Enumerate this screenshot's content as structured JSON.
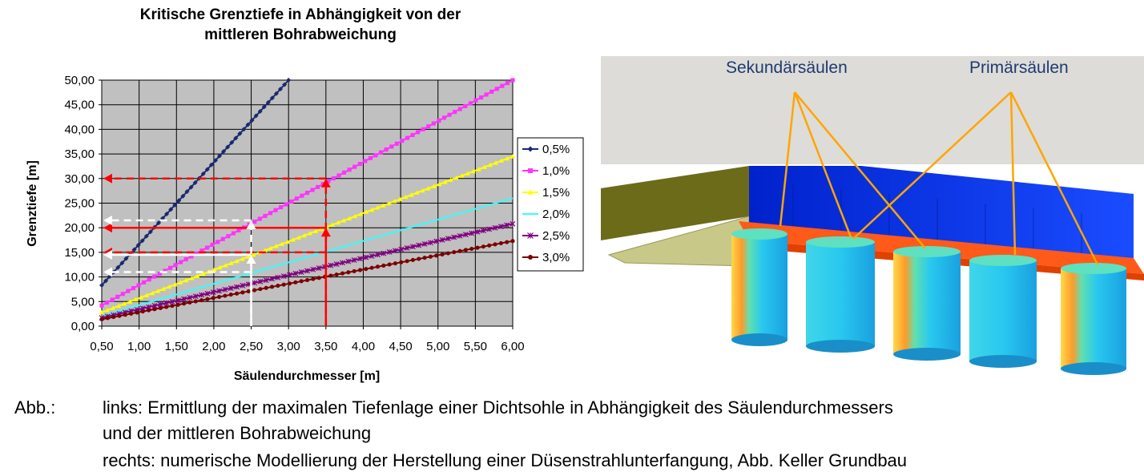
{
  "chart_data": {
    "type": "line",
    "title_line1": "Kritische Grenztiefe in Abhängigkeit von der",
    "title_line2": "mittleren Bohrabweichung",
    "xlabel": "Säulendurchmesser [m]",
    "ylabel": "Grenztiefe [m]",
    "xlim": [
      0.5,
      6.0
    ],
    "ylim": [
      0,
      50
    ],
    "x_ticks": [
      "0,50",
      "1,00",
      "1,50",
      "2,00",
      "2,50",
      "3,00",
      "3,50",
      "4,00",
      "4,50",
      "5,00",
      "5,50",
      "6,00"
    ],
    "y_ticks": [
      "0,00",
      "5,00",
      "10,00",
      "15,00",
      "20,00",
      "25,00",
      "30,00",
      "35,00",
      "40,00",
      "45,00",
      "50,00"
    ],
    "grid": true,
    "legend_position": "right",
    "series": [
      {
        "name": "0,5%",
        "color": "#1a2a6c",
        "marker": "diamond",
        "points": [
          [
            0.5,
            8.3
          ],
          [
            3.0,
            50.0
          ]
        ]
      },
      {
        "name": "1,0%",
        "color": "#ff33ff",
        "marker": "square",
        "points": [
          [
            0.5,
            4.2
          ],
          [
            6.0,
            50.0
          ]
        ]
      },
      {
        "name": "1,5%",
        "color": "#ffff00",
        "marker": "triangle",
        "points": [
          [
            0.5,
            2.8
          ],
          [
            6.0,
            34.5
          ]
        ]
      },
      {
        "name": "2,0%",
        "color": "#33ffff",
        "marker": "none",
        "points": [
          [
            0.5,
            2.1
          ],
          [
            6.0,
            26.0
          ]
        ]
      },
      {
        "name": "2,5%",
        "color": "#800080",
        "marker": "star",
        "points": [
          [
            0.5,
            1.7
          ],
          [
            6.0,
            20.8
          ]
        ]
      },
      {
        "name": "3,0%",
        "color": "#7b0000",
        "marker": "circle",
        "points": [
          [
            0.5,
            1.4
          ],
          [
            6.0,
            17.3
          ]
        ]
      }
    ],
    "annotations": [
      {
        "type": "vertical",
        "x": 3.5,
        "y": 30,
        "color": "#ff0000",
        "dashed": true
      },
      {
        "type": "vertical",
        "x": 3.5,
        "y": 20,
        "color": "#ff0000",
        "dashed": false
      },
      {
        "type": "horizontal",
        "x": 3.5,
        "y": 30,
        "color": "#ff0000",
        "dashed": true
      },
      {
        "type": "horizontal",
        "x": 3.5,
        "y": 20,
        "color": "#ff0000",
        "dashed": false
      },
      {
        "type": "horizontal",
        "x": 3.5,
        "y": 15,
        "color": "#ff0000",
        "dashed": true
      },
      {
        "type": "vertical",
        "x": 2.5,
        "y": 21.5,
        "color": "#ffffff",
        "dashed": true
      },
      {
        "type": "vertical",
        "x": 2.5,
        "y": 14.5,
        "color": "#ffffff",
        "dashed": false
      },
      {
        "type": "horizontal",
        "x": 2.5,
        "y": 21.5,
        "color": "#ffffff",
        "dashed": true
      },
      {
        "type": "horizontal",
        "x": 2.5,
        "y": 14.5,
        "color": "#ffffff",
        "dashed": false
      },
      {
        "type": "horizontal",
        "x": 2.5,
        "y": 11,
        "color": "#ffffff",
        "dashed": true
      }
    ]
  },
  "figure_right": {
    "label_secondary": "Sekundärsäulen",
    "label_primary": "Primärsäulen"
  },
  "caption": {
    "label": "Abb.:",
    "line1": "links: Ermittlung der maximalen Tiefenlage einer Dichtsohle in Abhängigkeit des Säulendurchmessers",
    "line2": "und der mittleren Bohrabweichung",
    "line3": "rechts: numerische Modellierung der Herstellung einer Düsenstrahlunterfangung, Abb. Keller Grundbau"
  }
}
